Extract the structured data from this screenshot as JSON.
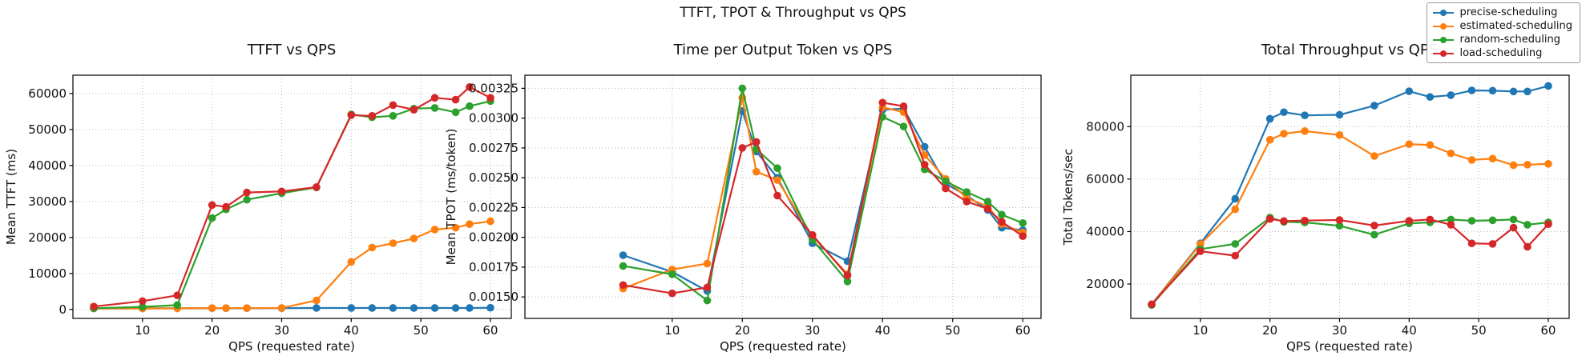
{
  "figure": {
    "title": "TTFT, TPOT & Throughput vs QPS",
    "background": "#ffffff"
  },
  "legend": {
    "items": [
      {
        "label": "precise-scheduling",
        "color": "#1f77b4"
      },
      {
        "label": "estimated-scheduling",
        "color": "#ff7f0e"
      },
      {
        "label": "random-scheduling",
        "color": "#2ca02c"
      },
      {
        "label": "load-scheduling",
        "color": "#d62728"
      }
    ]
  },
  "chart_data": [
    {
      "type": "line",
      "title": "TTFT vs QPS",
      "xlabel": "QPS (requested rate)",
      "ylabel": "Mean TTFT (ms)",
      "grid": true,
      "x": [
        3,
        10,
        15,
        20,
        22,
        25,
        30,
        35,
        40,
        43,
        46,
        49,
        52,
        55,
        57,
        60
      ],
      "xlim": [
        0,
        63
      ],
      "ylim": [
        -2500,
        65100
      ],
      "xticks": [
        10,
        20,
        30,
        40,
        50,
        60
      ],
      "yticks": [
        0,
        10000,
        20000,
        30000,
        40000,
        50000,
        60000
      ],
      "ytick_labels": [
        "0",
        "10000",
        "20000",
        "30000",
        "40000",
        "50000",
        "60000"
      ],
      "series": [
        {
          "name": "precise-scheduling",
          "color": "#1f77b4",
          "values": [
            300,
            300,
            300,
            350,
            350,
            350,
            350,
            400,
            400,
            400,
            400,
            400,
            400,
            400,
            400,
            450
          ]
        },
        {
          "name": "estimated-scheduling",
          "color": "#ff7f0e",
          "values": [
            250,
            250,
            300,
            350,
            350,
            350,
            400,
            2500,
            13200,
            17200,
            18400,
            19700,
            22200,
            22700,
            23700,
            24500
          ]
        },
        {
          "name": "random-scheduling",
          "color": "#2ca02c",
          "values": [
            300,
            700,
            1200,
            25400,
            27800,
            30500,
            32300,
            33900,
            54200,
            53400,
            53800,
            55800,
            56000,
            54800,
            56500,
            57900
          ]
        },
        {
          "name": "load-scheduling",
          "color": "#d62728",
          "values": [
            800,
            2300,
            3900,
            29000,
            28500,
            32500,
            32800,
            34000,
            54000,
            53800,
            56800,
            55500,
            58800,
            58300,
            61800,
            58800
          ]
        }
      ]
    },
    {
      "type": "line",
      "title": "Time per Output Token vs QPS",
      "xlabel": "QPS (requested rate)",
      "ylabel": "Mean TPOT (ms/token)",
      "grid": true,
      "x": [
        3,
        10,
        15,
        20,
        22,
        25,
        30,
        35,
        40,
        43,
        46,
        49,
        52,
        55,
        57,
        60
      ],
      "xlim": [
        -11,
        62.6
      ],
      "ylim": [
        0.00132,
        0.00336
      ],
      "xticks": [
        10,
        20,
        30,
        40,
        50,
        60
      ],
      "yticks": [
        0.0015,
        0.00175,
        0.002,
        0.00225,
        0.0025,
        0.00275,
        0.003,
        0.00325
      ],
      "ytick_labels": [
        "0.00150",
        "0.00175",
        "0.00200",
        "0.00225",
        "0.00250",
        "0.00275",
        "0.00300",
        "0.00325"
      ],
      "series": [
        {
          "name": "precise-scheduling",
          "color": "#1f77b4",
          "values": [
            0.00185,
            0.00171,
            0.00155,
            0.00306,
            0.00272,
            0.0025,
            0.00195,
            0.0018,
            0.00307,
            0.00308,
            0.00276,
            0.00245,
            0.00235,
            0.00223,
            0.00208,
            0.00206
          ]
        },
        {
          "name": "estimated-scheduling",
          "color": "#ff7f0e",
          "values": [
            0.00157,
            0.00173,
            0.00178,
            0.00317,
            0.00255,
            0.00248,
            0.00201,
            0.00169,
            0.00309,
            0.00305,
            0.00269,
            0.00249,
            0.00233,
            0.00226,
            0.00211,
            0.00204
          ]
        },
        {
          "name": "random-scheduling",
          "color": "#2ca02c",
          "values": [
            0.00176,
            0.00169,
            0.00147,
            0.00325,
            0.00274,
            0.00258,
            0.00198,
            0.00163,
            0.00301,
            0.00293,
            0.00257,
            0.00247,
            0.00238,
            0.0023,
            0.00219,
            0.00212
          ]
        },
        {
          "name": "load-scheduling",
          "color": "#d62728",
          "values": [
            0.0016,
            0.00153,
            0.00158,
            0.00275,
            0.0028,
            0.00235,
            0.00202,
            0.00168,
            0.00313,
            0.0031,
            0.00261,
            0.00241,
            0.0023,
            0.00224,
            0.00213,
            0.00201
          ]
        }
      ]
    },
    {
      "type": "line",
      "title": "Total Throughput vs QPS",
      "xlabel": "QPS (requested rate)",
      "ylabel": "Total Tokens/sec",
      "grid": true,
      "x": [
        3,
        10,
        15,
        20,
        22,
        25,
        30,
        35,
        40,
        43,
        46,
        49,
        52,
        55,
        57,
        60
      ],
      "xlim": [
        0,
        63
      ],
      "ylim": [
        6900,
        99600
      ],
      "xticks": [
        10,
        20,
        30,
        40,
        50,
        60
      ],
      "yticks": [
        20000,
        40000,
        60000,
        80000
      ],
      "ytick_labels": [
        "20000",
        "40000",
        "60000",
        "80000"
      ],
      "series": [
        {
          "name": "precise-scheduling",
          "color": "#1f77b4",
          "values": [
            12200,
            35500,
            52500,
            83000,
            85500,
            84300,
            84500,
            88000,
            93500,
            91300,
            92000,
            93800,
            93700,
            93400,
            93400,
            95500
          ]
        },
        {
          "name": "estimated-scheduling",
          "color": "#ff7f0e",
          "values": [
            12100,
            35200,
            48500,
            75000,
            77300,
            78300,
            76800,
            68800,
            73300,
            73000,
            69800,
            67300,
            67800,
            65300,
            65500,
            65800
          ]
        },
        {
          "name": "random-scheduling",
          "color": "#2ca02c",
          "values": [
            12000,
            33300,
            35300,
            45300,
            43700,
            43500,
            42200,
            38800,
            43100,
            43500,
            44600,
            44100,
            44300,
            44600,
            42600,
            43500
          ]
        },
        {
          "name": "load-scheduling",
          "color": "#d62728",
          "values": [
            12300,
            32500,
            30800,
            44800,
            44000,
            44200,
            44400,
            42300,
            44100,
            44600,
            42600,
            35500,
            35300,
            41500,
            34200,
            42800
          ]
        }
      ]
    }
  ]
}
